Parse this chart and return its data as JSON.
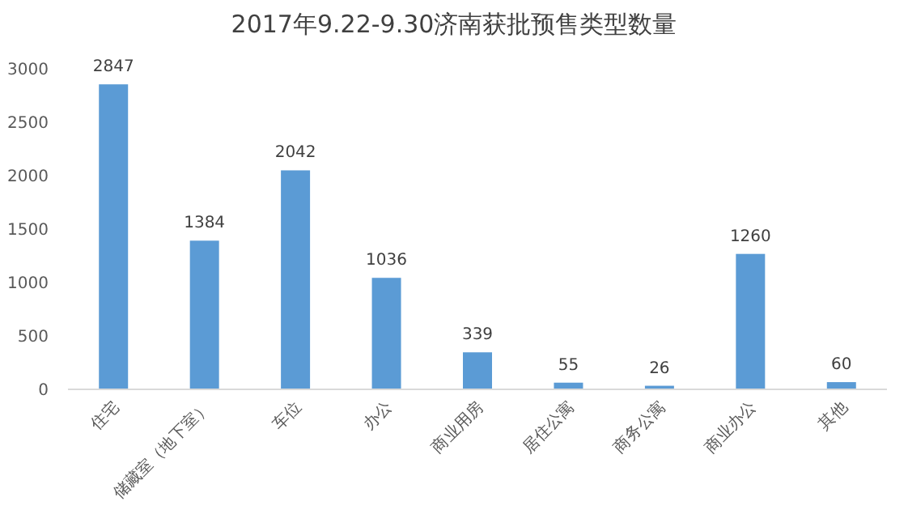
{
  "chart_data": {
    "type": "bar",
    "title": "2017年9.22-9.30济南获批预售类型数量",
    "categories": [
      "住宅",
      "储藏室（地下室）",
      "车位",
      "办公",
      "商业用房",
      "居住公寓",
      "商务公寓",
      "商业办公",
      "其他"
    ],
    "values": [
      2847,
      1384,
      2042,
      1036,
      339,
      55,
      26,
      1260,
      60
    ],
    "color": "#5b9bd5",
    "ylim": [
      0,
      3000
    ],
    "yticks": [
      0,
      500,
      1000,
      1500,
      2000,
      2500,
      3000
    ],
    "grid": false,
    "data_labels": true
  }
}
